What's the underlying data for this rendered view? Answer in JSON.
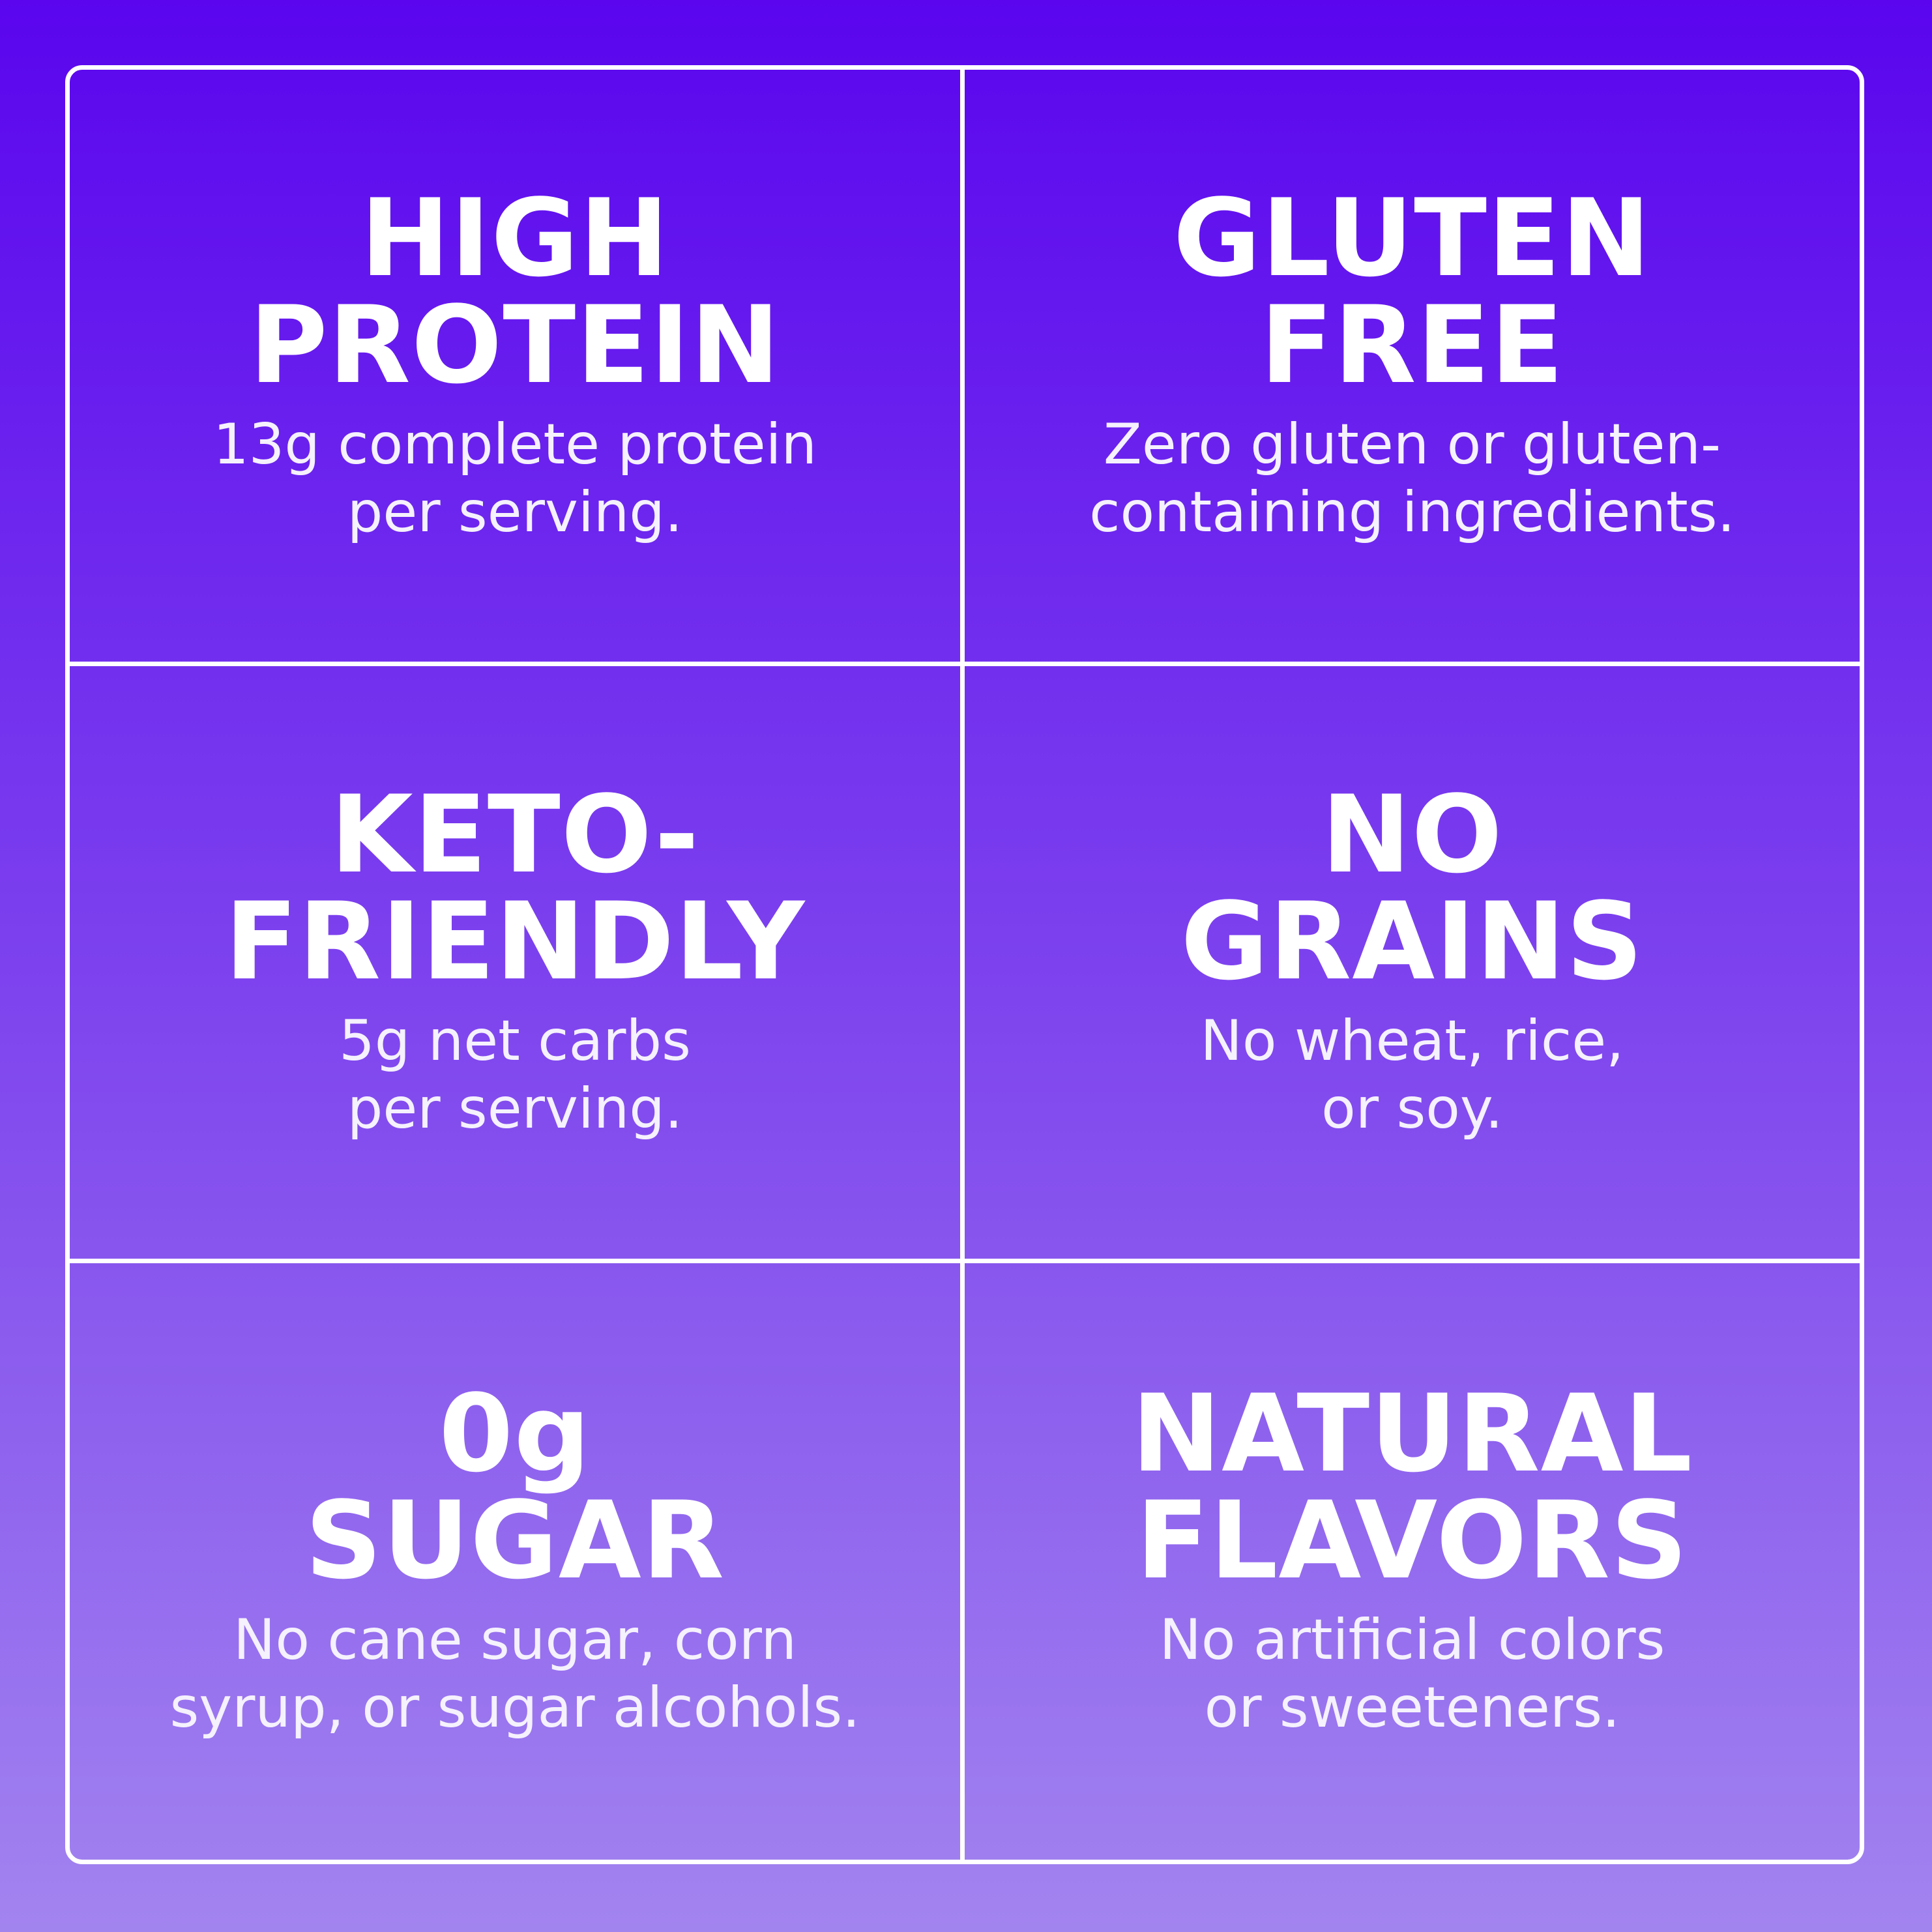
{
  "page": {
    "background_gradient_top": "#5A05EE",
    "background_gradient_bottom": "#A284EF",
    "grid_line_color": "#FFFFFF",
    "heading_color": "#FFFFFF",
    "subtext_color": "#F5F1FD"
  },
  "cells": [
    {
      "heading_line1": "HIGH",
      "heading_line2": "PROTEIN",
      "sub_line1": "13g complete protein",
      "sub_line2": "per serving."
    },
    {
      "heading_line1": "GLUTEN",
      "heading_line2": "FREE",
      "sub_line1": "Zero gluten or gluten-",
      "sub_line2": "containing ingredients."
    },
    {
      "heading_line1": "KETO-",
      "heading_line2": "FRIENDLY",
      "sub_line1": "5g net carbs",
      "sub_line2": "per serving."
    },
    {
      "heading_line1": "NO",
      "heading_line2": "GRAINS",
      "sub_line1": "No wheat, rice,",
      "sub_line2": "or soy."
    },
    {
      "heading_line1": "0g",
      "heading_line2": "SUGAR",
      "sub_line1": "No cane sugar, corn",
      "sub_line2": "syrup, or sugar alcohols."
    },
    {
      "heading_line1": "NATURAL",
      "heading_line2": "FLAVORS",
      "sub_line1": "No artificial colors",
      "sub_line2": "or sweeteners."
    }
  ]
}
